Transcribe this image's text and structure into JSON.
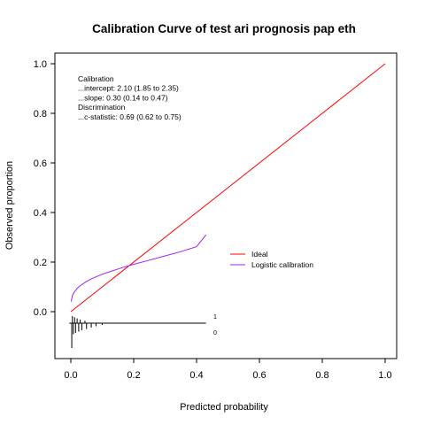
{
  "chart_data": {
    "type": "line",
    "title": "Calibration Curve of test ari prognosis pap eth",
    "xlabel": "Predicted probability",
    "ylabel": "Observed proportion",
    "xlim": [
      -0.08,
      1.05
    ],
    "ylim": [
      -0.2,
      1.05
    ],
    "x_ticks": [
      0.0,
      0.2,
      0.4,
      0.6,
      0.8,
      1.0
    ],
    "y_ticks": [
      0.0,
      0.2,
      0.4,
      0.6,
      0.8,
      1.0
    ],
    "x_tick_labels": [
      "0.0",
      "0.2",
      "0.4",
      "0.6",
      "0.8",
      "1.0"
    ],
    "y_tick_labels": [
      "0.0",
      "0.2",
      "0.4",
      "0.6",
      "0.8",
      "1.0"
    ],
    "grid": false,
    "legend_position": "right",
    "annotation": {
      "lines": [
        "Calibration",
        "...intercept: 2.10 (1.85 to 2.35)",
        "...slope: 0.30 (0.14 to 0.47)",
        "Discrimination",
        "...c-statistic: 0.69 (0.62 to 0.75)"
      ]
    },
    "series": [
      {
        "name": "Ideal",
        "color": "#ff0000",
        "x": [
          0.0,
          1.0
        ],
        "y": [
          0.0,
          1.0
        ]
      },
      {
        "name": "Logistic calibration",
        "color": "#a020f0",
        "x": [
          0.001,
          0.005,
          0.01,
          0.02,
          0.03,
          0.05,
          0.07,
          0.1,
          0.13,
          0.16,
          0.2,
          0.25,
          0.3,
          0.35,
          0.4,
          0.43
        ],
        "y": [
          0.041,
          0.065,
          0.077,
          0.094,
          0.105,
          0.122,
          0.135,
          0.151,
          0.164,
          0.176,
          0.191,
          0.208,
          0.225,
          0.242,
          0.262,
          0.31
        ]
      }
    ],
    "rug": {
      "labels": [
        "1",
        "0"
      ],
      "events": [
        0.005,
        0.012,
        0.02,
        0.03,
        0.045
      ],
      "nonevents": [
        0.003,
        0.008,
        0.015,
        0.025,
        0.035,
        0.05,
        0.065,
        0.08,
        0.1
      ]
    }
  }
}
